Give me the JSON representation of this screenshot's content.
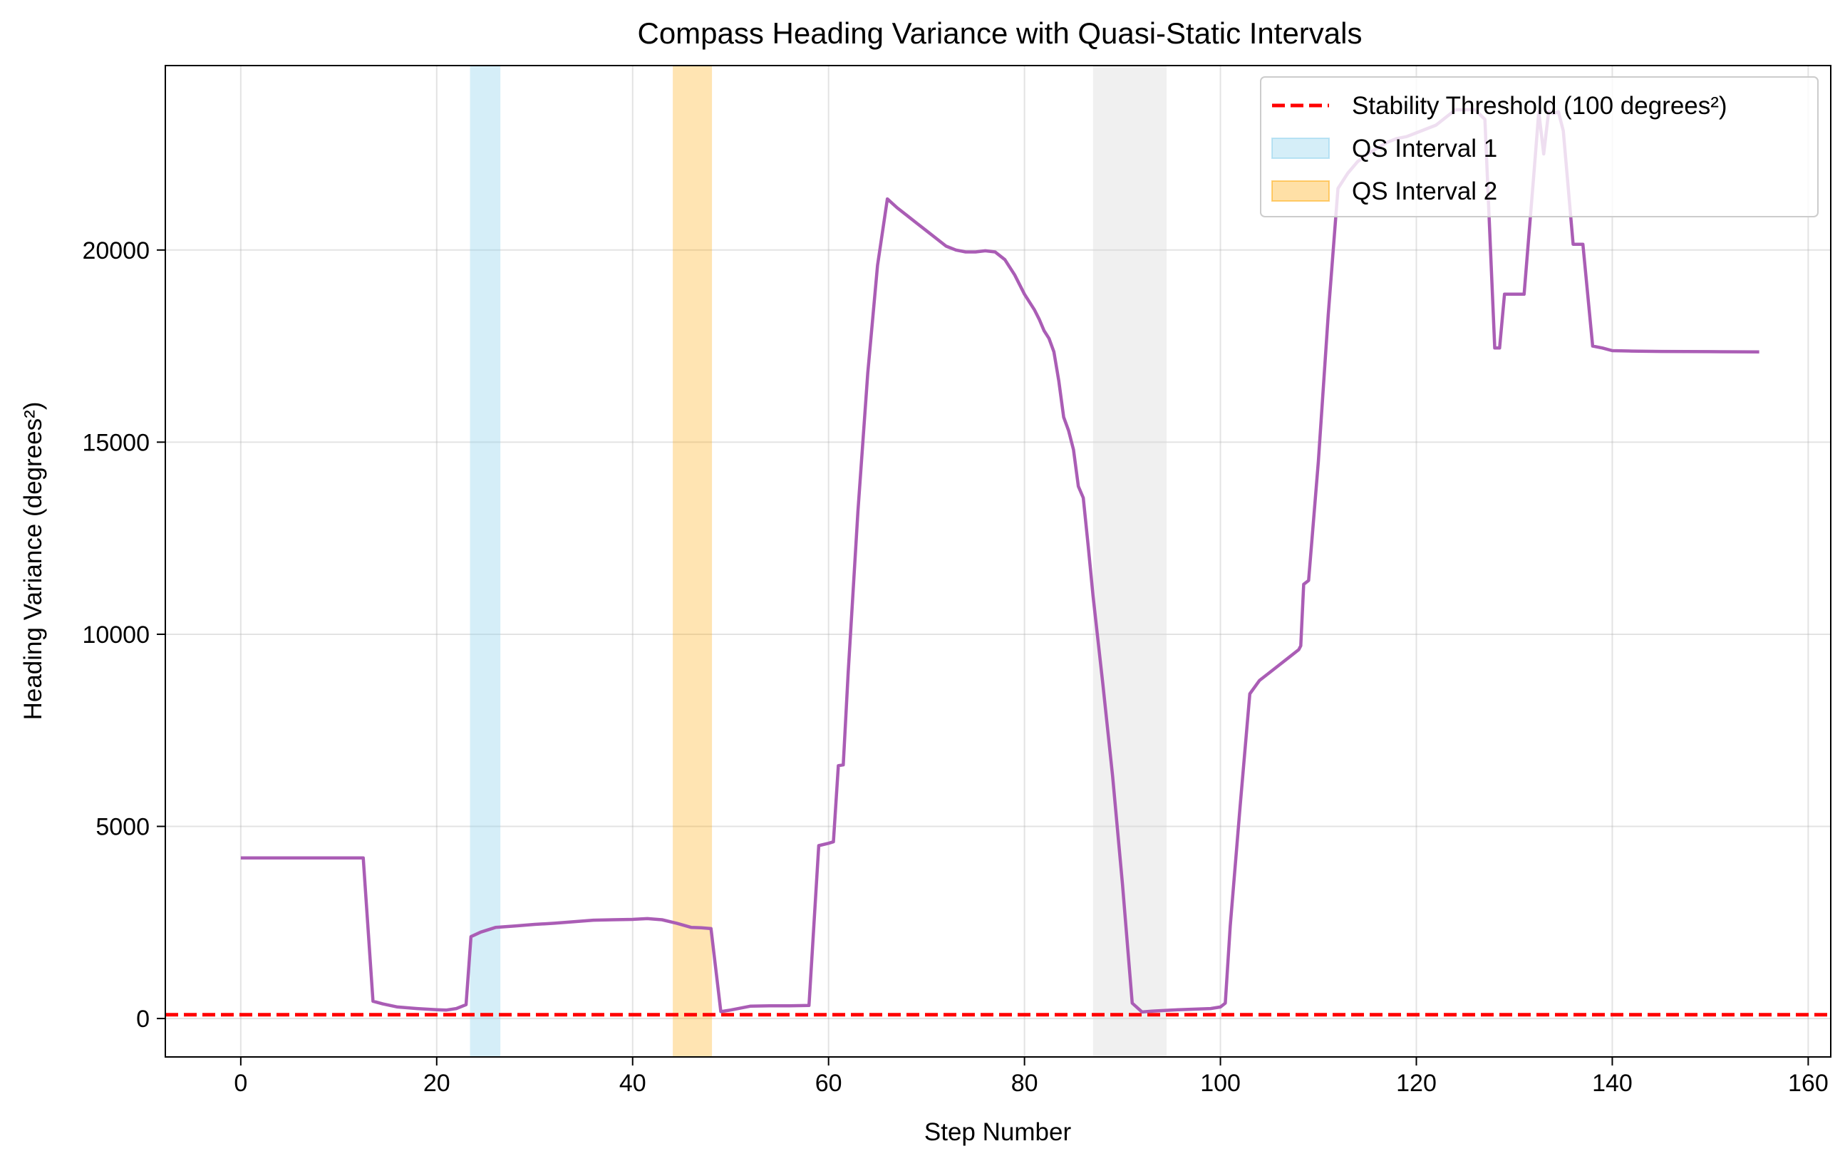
{
  "chart_data": {
    "type": "line",
    "title": "Compass Heading Variance with Quasi-Static Intervals",
    "xlabel": "Step Number",
    "ylabel": "Heading Variance (degrees²)",
    "xlim": [
      -7.7,
      162.3
    ],
    "ylim": [
      -1000,
      24800
    ],
    "xticks": [
      0,
      20,
      40,
      60,
      80,
      100,
      120,
      140,
      160
    ],
    "yticks": [
      0,
      5000,
      10000,
      15000,
      20000
    ],
    "grid": true,
    "legend_position": "upper right",
    "series": [
      {
        "color": "#aa5db5",
        "x": [
          0,
          12.5,
          13.5,
          14.5,
          16,
          18,
          20,
          21,
          22,
          23,
          23.5,
          24.5,
          26,
          28,
          30,
          32,
          34,
          36,
          38,
          40,
          41.5,
          43,
          44.5,
          46,
          47,
          48,
          49,
          50,
          52,
          54,
          56,
          58,
          59,
          60,
          60.5,
          61,
          61.5,
          62,
          63,
          64,
          65,
          66,
          67,
          68,
          69,
          70,
          71,
          72,
          73,
          74,
          75,
          76,
          77,
          78,
          79,
          80,
          81,
          81.5,
          82,
          82.5,
          83,
          83.5,
          84,
          84.5,
          85,
          85.5,
          86,
          86.5,
          87,
          88,
          89,
          90,
          91,
          92,
          93,
          95,
          97,
          99,
          100,
          100.5,
          101,
          102,
          103,
          104,
          105,
          106,
          107,
          108,
          108.2,
          108.5,
          109,
          110,
          111,
          112,
          113,
          114,
          115,
          116,
          117,
          118,
          119,
          120,
          121,
          122,
          123,
          124,
          125,
          126,
          127,
          128,
          128.5,
          129,
          130,
          131,
          132,
          132.5,
          133,
          133.5,
          134,
          134.5,
          135,
          136,
          136.5,
          137,
          138,
          139,
          140,
          142,
          145,
          150,
          155
        ],
        "y": [
          4180,
          4180,
          450,
          380,
          300,
          260,
          230,
          220,
          260,
          360,
          2130,
          2250,
          2370,
          2410,
          2450,
          2480,
          2520,
          2560,
          2570,
          2580,
          2600,
          2570,
          2480,
          2370,
          2360,
          2340,
          180,
          220,
          320,
          330,
          330,
          340,
          4500,
          4560,
          4600,
          6580,
          6600,
          9000,
          13200,
          16800,
          19600,
          21330,
          21100,
          20900,
          20700,
          20500,
          20300,
          20100,
          20000,
          19950,
          19950,
          19980,
          19950,
          19750,
          19350,
          18850,
          18450,
          18200,
          17900,
          17700,
          17350,
          16600,
          15650,
          15300,
          14800,
          13850,
          13550,
          12300,
          11000,
          8700,
          6300,
          3500,
          400,
          170,
          190,
          220,
          240,
          260,
          300,
          400,
          2400,
          5500,
          8450,
          8800,
          9000,
          9200,
          9400,
          9600,
          9700,
          11300,
          11400,
          14500,
          18300,
          21600,
          22000,
          22300,
          22500,
          22650,
          22800,
          22900,
          22950,
          23050,
          23150,
          23250,
          23450,
          23650,
          23650,
          23650,
          23400,
          17450,
          17450,
          18850,
          18850,
          18850,
          22000,
          23600,
          22500,
          23600,
          23550,
          23600,
          23100,
          20150,
          20150,
          20150,
          17500,
          17450,
          17380,
          17370,
          17360,
          17355,
          17350
        ]
      }
    ],
    "threshold_line": {
      "y": 100,
      "color": "#ff0000",
      "style": "dashed",
      "label": "Stability Threshold (100 degrees²)"
    },
    "shaded_spans": [
      {
        "x0": 23.4,
        "x1": 26.5,
        "color": "#87ceeb",
        "opacity": 0.35,
        "label": "QS Interval 1"
      },
      {
        "x0": 44.1,
        "x1": 48.1,
        "color": "#ffa500",
        "opacity": 0.3,
        "label": "QS Interval 2"
      },
      {
        "x0": 87,
        "x1": 94.5,
        "color": "#d3d3d3",
        "opacity": 0.35,
        "label": ""
      }
    ],
    "legend": [
      {
        "label": "Stability Threshold (100 degrees²)",
        "kind": "dashed-line",
        "color": "#ff0000"
      },
      {
        "label": "QS Interval 1",
        "kind": "patch",
        "color": "#87ceeb"
      },
      {
        "label": "QS Interval 2",
        "kind": "patch",
        "color": "#ffa500"
      }
    ]
  }
}
